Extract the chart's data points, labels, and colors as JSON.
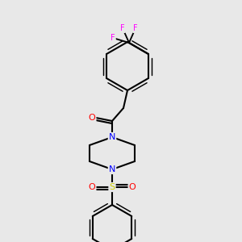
{
  "background_color": "#e8e8e8",
  "bond_color": "#000000",
  "bond_width": 1.5,
  "atom_colors": {
    "F": "#ff00ff",
    "N": "#0000ff",
    "O": "#ff0000",
    "S": "#cccc00",
    "C": "#000000"
  },
  "figsize": [
    3.0,
    3.0
  ],
  "dpi": 100
}
